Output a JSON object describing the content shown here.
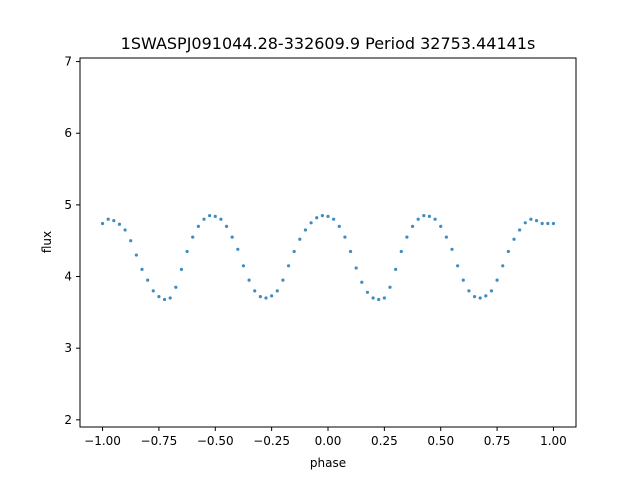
{
  "chart_data": {
    "type": "scatter",
    "title": "1SWASPJ091044.28-332609.9 Period 32753.44141s",
    "xlabel": "phase",
    "ylabel": "flux",
    "xlim": [
      -1.1,
      1.1
    ],
    "ylim": [
      1.9,
      7.05
    ],
    "xticks": [
      -1.0,
      -0.75,
      -0.5,
      -0.25,
      0.0,
      0.25,
      0.5,
      0.75,
      1.0
    ],
    "xtick_labels": [
      "−1.00",
      "−0.75",
      "−0.50",
      "−0.25",
      "0.00",
      "0.25",
      "0.50",
      "0.75",
      "1.00"
    ],
    "yticks": [
      2,
      3,
      4,
      5,
      6,
      7
    ],
    "ytick_labels": [
      "2",
      "3",
      "4",
      "5",
      "6",
      "7"
    ],
    "grid": false,
    "point_color": "#1f77b4",
    "series": [
      {
        "x": [
          -1.0,
          -0.975,
          -0.95,
          -0.925,
          -0.9,
          -0.875,
          -0.85,
          -0.825,
          -0.8,
          -0.775,
          -0.75,
          -0.725,
          -0.7,
          -0.675,
          -0.65,
          -0.625,
          -0.6,
          -0.575,
          -0.55,
          -0.525,
          -0.5,
          -0.475,
          -0.45,
          -0.425,
          -0.4,
          -0.375,
          -0.35,
          -0.325,
          -0.3,
          -0.275,
          -0.25,
          -0.225,
          -0.2,
          -0.175,
          -0.15,
          -0.125,
          -0.1,
          -0.075,
          -0.05,
          -0.025,
          0.0,
          0.025,
          0.05,
          0.075,
          0.1,
          0.125,
          0.15,
          0.175,
          0.2,
          0.225,
          0.25,
          0.275,
          0.3,
          0.325,
          0.35,
          0.375,
          0.4,
          0.425,
          0.45,
          0.475,
          0.5,
          0.525,
          0.55,
          0.575,
          0.6,
          0.625,
          0.65,
          0.675,
          0.7,
          0.725,
          0.75,
          0.775,
          0.8,
          0.825,
          0.85,
          0.875,
          0.9,
          0.925,
          0.95,
          0.975,
          1.0
        ],
        "y": [
          4.74,
          4.8,
          4.78,
          4.73,
          4.65,
          4.5,
          4.3,
          4.1,
          3.95,
          3.8,
          3.72,
          3.68,
          3.7,
          3.85,
          4.1,
          4.35,
          4.55,
          4.7,
          4.8,
          4.85,
          4.84,
          4.8,
          4.7,
          4.55,
          4.38,
          4.15,
          3.95,
          3.8,
          3.72,
          3.7,
          3.73,
          3.8,
          3.95,
          4.15,
          4.35,
          4.52,
          4.65,
          4.75,
          4.82,
          4.85,
          4.84,
          4.8,
          4.7,
          4.55,
          4.35,
          4.12,
          3.92,
          3.78,
          3.7,
          3.68,
          3.7,
          3.85,
          4.1,
          4.35,
          4.55,
          4.7,
          4.8,
          4.85,
          4.84,
          4.8,
          4.7,
          4.55,
          4.38,
          4.15,
          3.95,
          3.8,
          3.72,
          3.7,
          3.73,
          3.8,
          3.95,
          4.15,
          4.35,
          4.52,
          4.65,
          4.75,
          4.8,
          4.78,
          4.74,
          4.74,
          4.74
        ]
      }
    ]
  }
}
